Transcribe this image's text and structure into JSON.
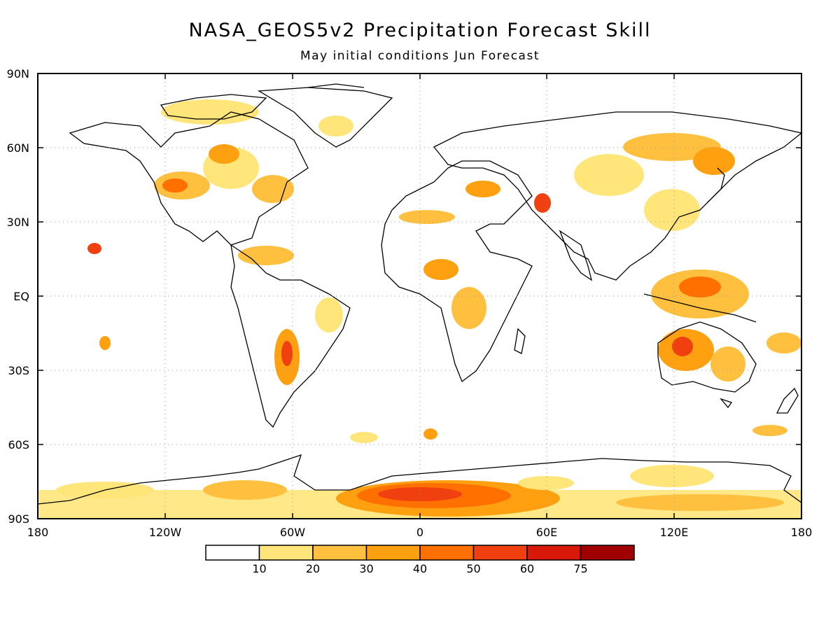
{
  "map": {
    "title": "NASA_GEOS5v2 Precipitation Forecast Skill",
    "subtitle": "May initial conditions  Jun Forecast",
    "lat_labels": [
      "90N",
      "60N",
      "30N",
      "EQ",
      "30S",
      "60S",
      "90S"
    ],
    "lon_labels": [
      "180",
      "120W",
      "60W",
      "0",
      "60E",
      "120E",
      "180"
    ]
  },
  "legend": {
    "labels": [
      "10",
      "20",
      "30",
      "40",
      "50",
      "60",
      "75"
    ],
    "colors": [
      "#ffffff",
      "#ffe57a",
      "#ffc040",
      "#ffa010",
      "#ff7000",
      "#f04010",
      "#d81808",
      "#a00000"
    ]
  },
  "colors": {
    "land_outline": "#000000",
    "grid": "#999999"
  }
}
